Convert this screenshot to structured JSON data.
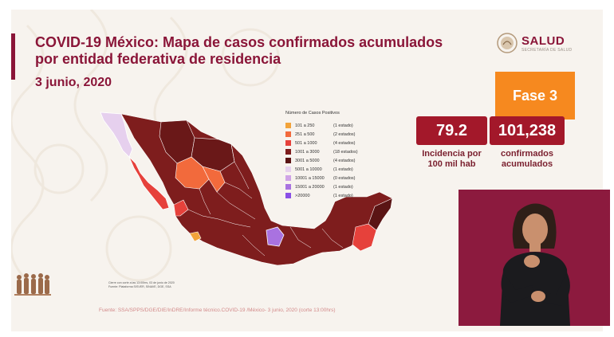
{
  "title_line1": "COVID-19 México: Mapa de casos confirmados acumulados",
  "title_line2": "por entidad federativa de residencia",
  "date": "3 junio, 2020",
  "logo": {
    "text": "SALUD",
    "subtext": "SECRETARÍA DE SALUD"
  },
  "phase": "Fase 3",
  "incidence": {
    "value": "79.2",
    "label_line1": "Incidencia por",
    "label_line2": "100 mil hab"
  },
  "confirmed": {
    "value": "101,238",
    "label_line1": "confirmados",
    "label_line2": "acumulados"
  },
  "legend": {
    "title": "Número de Casos Positivos",
    "items": [
      {
        "range": "101 a 250",
        "count": "(1 estado)",
        "color": "#f2a33a"
      },
      {
        "range": "251 a 500",
        "count": "(2 estados)",
        "color": "#f26a3c"
      },
      {
        "range": "501 a 1000",
        "count": "(4 estados)",
        "color": "#e6413b"
      },
      {
        "range": "1001 a 3000",
        "count": "(18 estados)",
        "color": "#7e1d1d"
      },
      {
        "range": "3001 a 5000",
        "count": "(4 estados)",
        "color": "#5a1414"
      },
      {
        "range": "5001 a 10000",
        "count": "(1 estado)",
        "color": "#e6d0ee"
      },
      {
        "range": "10001 a 15000",
        "count": "(0 estados)",
        "color": "#cfa3e6"
      },
      {
        "range": "15001 a 20000",
        "count": "(1 estado)",
        "color": "#a972e0"
      },
      {
        "range": ">20000",
        "count": "(1 estado)",
        "color": "#8a4fe6"
      }
    ]
  },
  "footnote_line1": "Cierre con corte a las 13:00hrs, 03 de junio de 2020",
  "footnote_line2": "Fuente: Plataforma SISVER, SINAVE, DGE, SSA",
  "source": "Fuente: SSA/SPPS/DGE/DIE/InDRE/Informe técnico.COVID-19 /México- 3 junio, 2020 (corte 13:00hrs)",
  "colors": {
    "maroon": "#8a1538",
    "orange": "#f6891f",
    "stat_red": "#a3182a"
  }
}
